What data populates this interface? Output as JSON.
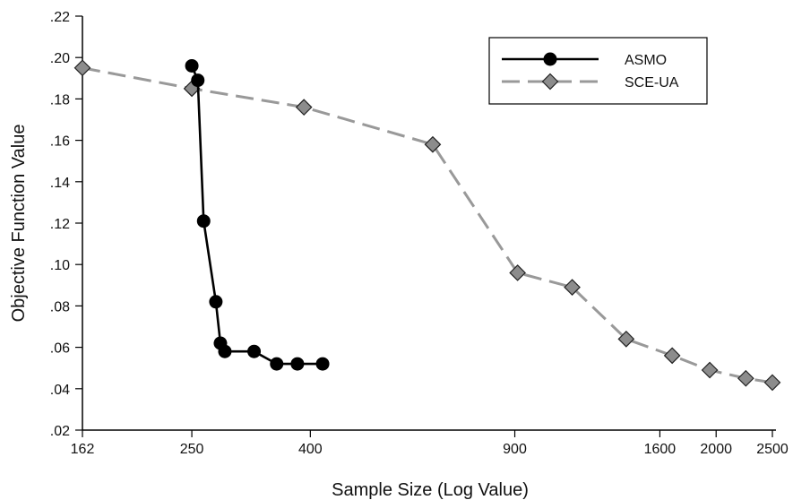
{
  "chart_data": {
    "type": "line",
    "title": "",
    "xlabel": "Sample Size (Log Value)",
    "ylabel": "Objective Function Value",
    "xscale": "log",
    "xlim": [
      162,
      2500
    ],
    "ylim": [
      0.02,
      0.22
    ],
    "x_ticks": [
      162,
      250,
      400,
      900,
      1600,
      2000,
      2500
    ],
    "x_tick_labels": [
      "162",
      "250",
      "400",
      "900",
      "1600",
      "2000",
      "2500"
    ],
    "y_ticks": [
      0.02,
      0.04,
      0.06,
      0.08,
      0.1,
      0.12,
      0.14,
      0.16,
      0.18,
      0.2,
      0.22
    ],
    "y_tick_labels": [
      ".02",
      ".04",
      ".06",
      ".08",
      ".10",
      ".12",
      ".14",
      ".16",
      ".18",
      ".20",
      ".22"
    ],
    "grid": false,
    "legend_position": "top-right",
    "series": [
      {
        "name": "ASMO",
        "color": "#000000",
        "line_style": "solid",
        "marker": "circle",
        "x": [
          250,
          256,
          262,
          275,
          280,
          285,
          320,
          350,
          380,
          420
        ],
        "y": [
          0.196,
          0.189,
          0.121,
          0.082,
          0.062,
          0.058,
          0.058,
          0.052,
          0.052,
          0.052
        ]
      },
      {
        "name": "SCE-UA",
        "color": "#999999",
        "line_style": "dashed",
        "marker": "diamond",
        "x": [
          162,
          250,
          390,
          650,
          910,
          1130,
          1400,
          1680,
          1950,
          2250,
          2500
        ],
        "y": [
          0.195,
          0.185,
          0.176,
          0.158,
          0.096,
          0.089,
          0.064,
          0.056,
          0.049,
          0.045,
          0.043
        ]
      }
    ]
  }
}
